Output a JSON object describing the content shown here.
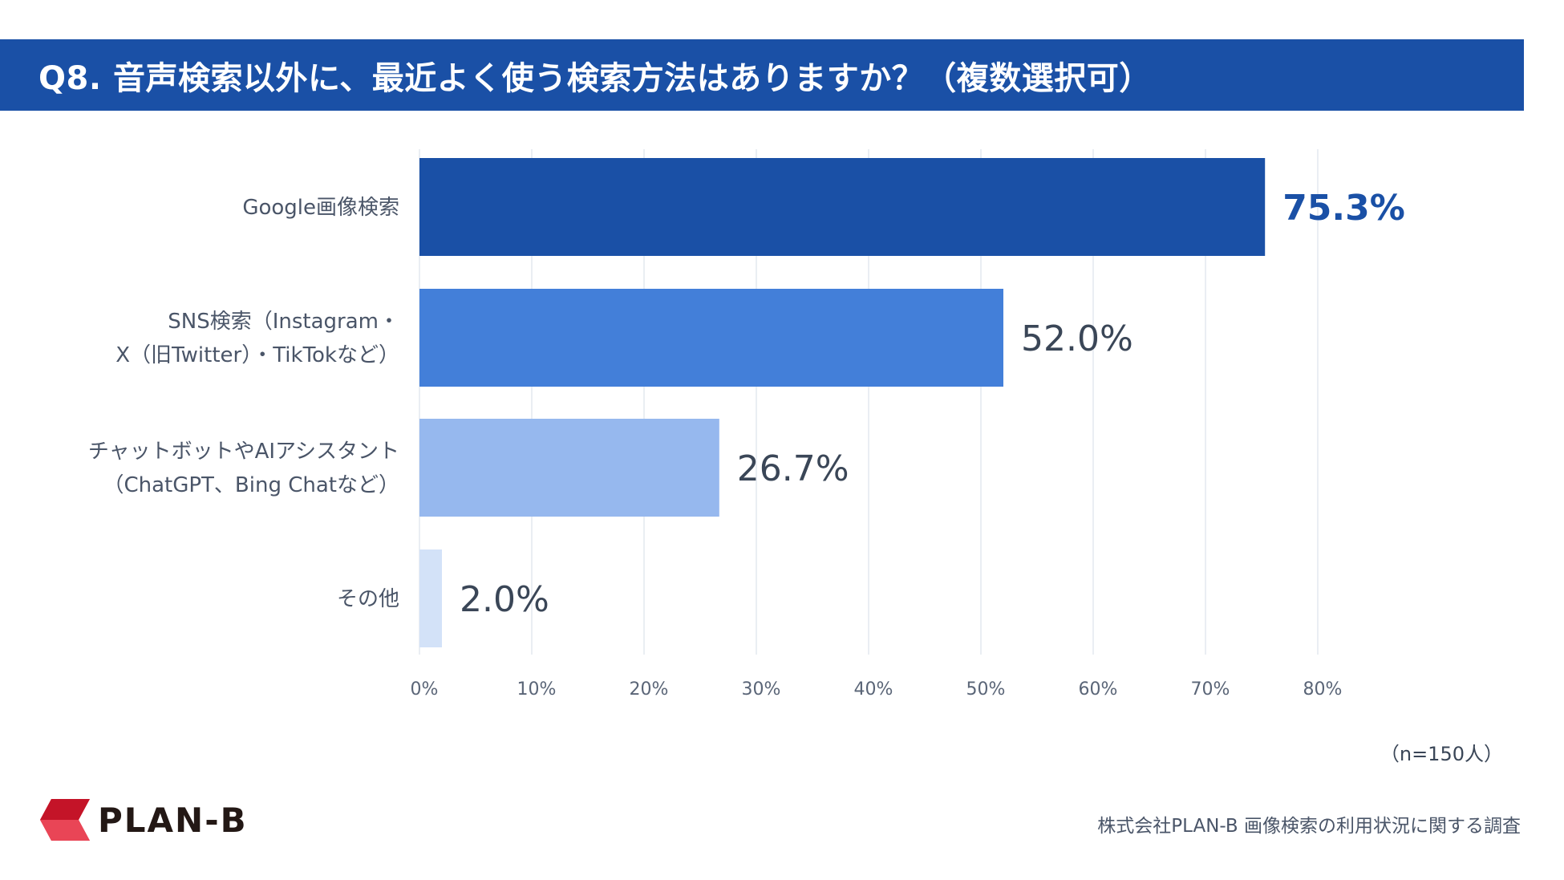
{
  "title": "Q8. 音声検索以外に、最近よく使う検索方法はありますか？（複数選択可）",
  "colors": {
    "header_bg": "#1a50a6",
    "grid": "#e3e8ef",
    "bar_colors": [
      "#1a50a6",
      "#437fd9",
      "#96b8ee",
      "#d3e2f8"
    ],
    "highlight_text": "#1a50a6"
  },
  "chart_data": {
    "type": "bar",
    "orientation": "horizontal",
    "title": "Q8. 音声検索以外に、最近よく使う検索方法はありますか？（複数選択可）",
    "categories": [
      [
        "Google画像検索"
      ],
      [
        "SNS検索（Instagram・",
        "X（旧Twitter）・TikTokなど）"
      ],
      [
        "チャットボットやAIアシスタント",
        "（ChatGPT、Bing Chatなど）"
      ],
      [
        "その他"
      ]
    ],
    "values": [
      75.3,
      52.0,
      26.7,
      2.0
    ],
    "value_labels": [
      "75.3%",
      "52.0%",
      "26.7%",
      "2.0%"
    ],
    "xlim": [
      0,
      80
    ],
    "ticks": [
      0,
      10,
      20,
      30,
      40,
      50,
      60,
      70,
      80
    ],
    "tick_labels": [
      "0%",
      "10%",
      "20%",
      "30%",
      "40%",
      "50%",
      "60%",
      "70%",
      "80%"
    ],
    "grid": true,
    "legend": "none"
  },
  "sample_note": "（n=150人）",
  "logo_text": "PLAN-B",
  "source_note": "株式会社PLAN-B 画像検索の利用状況に関する調査"
}
